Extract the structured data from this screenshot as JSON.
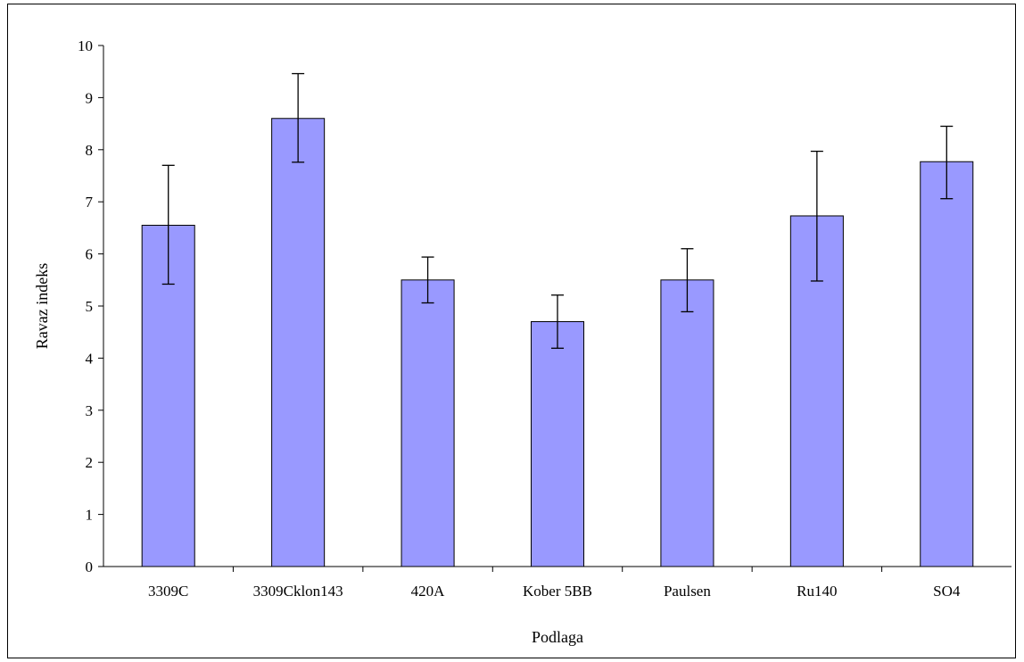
{
  "chart_data": {
    "type": "bar",
    "categories": [
      "3309C",
      "3309Cklon143",
      "420A",
      "Kober 5BB",
      "Paulsen",
      "Ru140",
      "SO4"
    ],
    "values": [
      6.55,
      8.6,
      5.5,
      4.7,
      5.5,
      6.73,
      7.77
    ],
    "error_bars": [
      {
        "low": 5.42,
        "high": 7.7
      },
      {
        "low": 7.76,
        "high": 9.46
      },
      {
        "low": 5.06,
        "high": 5.94
      },
      {
        "low": 4.19,
        "high": 5.21
      },
      {
        "low": 4.89,
        "high": 6.1
      },
      {
        "low": 5.48,
        "high": 7.97
      },
      {
        "low": 7.06,
        "high": 8.45
      }
    ],
    "xlabel": "Podlaga",
    "ylabel": "Ravaz indeks",
    "ylim": [
      0,
      10
    ],
    "yticks": [
      "0",
      "1",
      "2",
      "3",
      "4",
      "5",
      "6",
      "7",
      "8",
      "9",
      "10"
    ],
    "grid": false,
    "legend": "none",
    "colors": {
      "bar_fill": "#9999ff",
      "bar_stroke": "#000000",
      "axis": "#000000"
    }
  }
}
